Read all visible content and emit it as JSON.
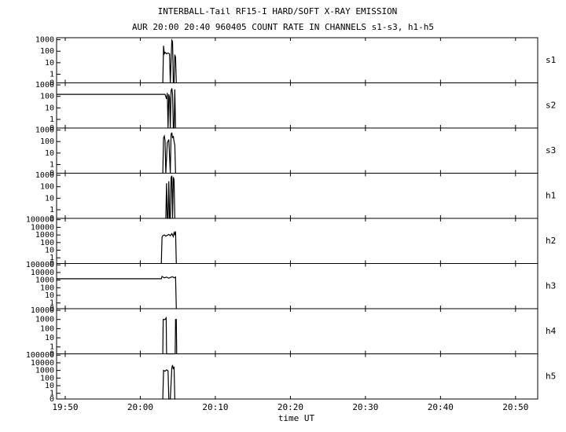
{
  "chart_data": {
    "title": "INTERBALL-Tail RF15-I HARD/SOFT X-RAY EMISSION",
    "subtitle": "AUR 20:00 20:40 960405  COUNT RATE IN CHANNELS s1-s3, h1-h5",
    "xlabel": "time UT",
    "xlim": [
      1188.85,
      1252.95
    ],
    "xticks": [
      {
        "value": 1190,
        "label": "19:50"
      },
      {
        "value": 1200,
        "label": "20:00"
      },
      {
        "value": 1210,
        "label": "20:10"
      },
      {
        "value": 1220,
        "label": "20:20"
      },
      {
        "value": 1230,
        "label": "20:30"
      },
      {
        "value": 1240,
        "label": "20:40"
      },
      {
        "value": 1250,
        "label": "20:50"
      }
    ],
    "yscale": "symlog",
    "color": "#000000",
    "panels": [
      {
        "type": "line",
        "name": "s1",
        "ylim": [
          0,
          1500
        ],
        "yticks": [
          0,
          1,
          10,
          100,
          1000
        ],
        "x": [
          1203.0,
          1203.1,
          1203.2,
          1203.3,
          1203.5,
          1203.7,
          1203.9,
          1204.0,
          1204.2,
          1204.3,
          1204.4,
          1204.5,
          1204.6,
          1204.7,
          1204.8
        ],
        "values": [
          0,
          300,
          60,
          80,
          60,
          70,
          60,
          0,
          900,
          700,
          0,
          0,
          50,
          30,
          0
        ]
      },
      {
        "type": "line",
        "name": "s2",
        "ylim": [
          0,
          1500
        ],
        "yticks": [
          0,
          1,
          10,
          100,
          1000
        ],
        "x": [
          1188.85,
          1203.3,
          1203.5,
          1203.6,
          1203.7,
          1203.8,
          1203.9,
          1204.0,
          1204.1,
          1204.2,
          1204.3,
          1204.4,
          1204.5,
          1204.6,
          1204.7
        ],
        "values": [
          150,
          150,
          60,
          200,
          0,
          150,
          80,
          0,
          300,
          500,
          150,
          0,
          0,
          400,
          0
        ]
      },
      {
        "type": "line",
        "name": "s3",
        "ylim": [
          0,
          1500
        ],
        "yticks": [
          0,
          1,
          10,
          100,
          1000
        ],
        "x": [
          1203.0,
          1203.1,
          1203.2,
          1203.3,
          1203.4,
          1203.6,
          1203.8,
          1204.0,
          1204.1,
          1204.2,
          1204.3,
          1204.4,
          1204.5,
          1204.6,
          1204.7
        ],
        "values": [
          0,
          200,
          300,
          120,
          0,
          80,
          150,
          0,
          400,
          600,
          200,
          300,
          100,
          50,
          0
        ]
      },
      {
        "type": "line",
        "name": "h1",
        "ylim": [
          0,
          1500
        ],
        "yticks": [
          0,
          1,
          10,
          100,
          1000
        ],
        "x": [
          1203.4,
          1203.5,
          1203.6,
          1203.7,
          1203.8,
          1203.9,
          1204.0,
          1204.1,
          1204.2,
          1204.3,
          1204.4,
          1204.5,
          1204.6
        ],
        "values": [
          0,
          200,
          0,
          0,
          300,
          0,
          0,
          600,
          900,
          0,
          700,
          400,
          0
        ]
      },
      {
        "type": "line",
        "name": "h2",
        "ylim": [
          0,
          150000
        ],
        "yticks": [
          0,
          1,
          10,
          100,
          1000,
          10000,
          100000
        ],
        "x": [
          1202.8,
          1202.9,
          1203.0,
          1203.2,
          1203.4,
          1203.6,
          1203.8,
          1204.0,
          1204.2,
          1204.4,
          1204.5,
          1204.6,
          1204.7,
          1204.8
        ],
        "values": [
          0,
          500,
          800,
          1000,
          700,
          900,
          1200,
          800,
          1500,
          600,
          2000,
          1200,
          3000,
          0
        ]
      },
      {
        "type": "line",
        "name": "h3",
        "ylim": [
          0,
          150000
        ],
        "yticks": [
          0,
          1,
          10,
          100,
          1000,
          10000,
          100000
        ],
        "x": [
          1188.85,
          1202.8,
          1202.9,
          1203.2,
          1203.5,
          1203.8,
          1204.0,
          1204.3,
          1204.5,
          1204.7,
          1204.8
        ],
        "values": [
          1500,
          1500,
          3000,
          2000,
          2500,
          1800,
          2200,
          2800,
          2000,
          2500,
          0
        ]
      },
      {
        "type": "line",
        "name": "h4",
        "ylim": [
          0,
          15000
        ],
        "yticks": [
          0,
          1,
          10,
          100,
          1000,
          10000
        ],
        "x": [
          1203.0,
          1203.05,
          1203.3,
          1203.45,
          1203.5,
          1204.65,
          1204.7,
          1204.8,
          1204.85
        ],
        "values": [
          0,
          1000,
          1000,
          1500,
          0,
          0,
          1000,
          1000,
          0
        ]
      },
      {
        "type": "line",
        "name": "h5",
        "ylim": [
          0,
          150000
        ],
        "yticks": [
          0,
          1,
          10,
          100,
          1000,
          10000,
          100000
        ],
        "x": [
          1203.0,
          1203.1,
          1203.3,
          1203.5,
          1203.7,
          1203.8,
          1204.0,
          1204.2,
          1204.3,
          1204.4,
          1204.5,
          1204.6,
          1204.7
        ],
        "values": [
          0,
          1000,
          800,
          1200,
          900,
          0,
          0,
          2000,
          5000,
          1500,
          3000,
          0,
          0
        ]
      }
    ]
  }
}
